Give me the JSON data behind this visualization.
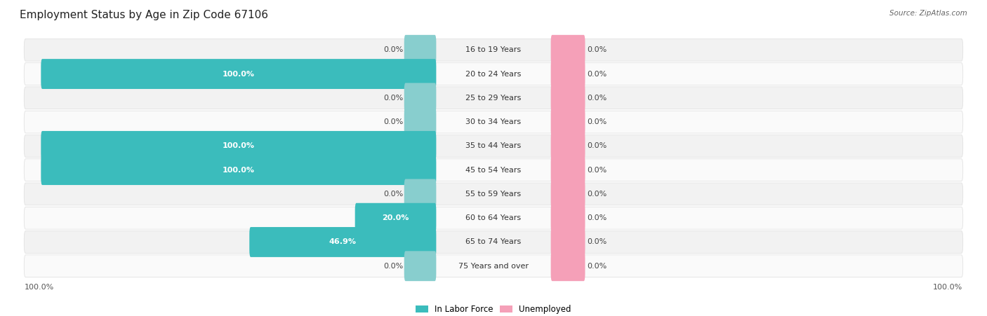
{
  "title": "Employment Status by Age in Zip Code 67106",
  "source": "Source: ZipAtlas.com",
  "categories": [
    "16 to 19 Years",
    "20 to 24 Years",
    "25 to 29 Years",
    "30 to 34 Years",
    "35 to 44 Years",
    "45 to 54 Years",
    "55 to 59 Years",
    "60 to 64 Years",
    "65 to 74 Years",
    "75 Years and over"
  ],
  "in_labor_force": [
    0.0,
    100.0,
    0.0,
    0.0,
    100.0,
    100.0,
    0.0,
    20.0,
    46.9,
    0.0
  ],
  "unemployed": [
    0.0,
    0.0,
    0.0,
    0.0,
    0.0,
    0.0,
    0.0,
    0.0,
    0.0,
    0.0
  ],
  "labor_color_full": "#3BBCBC",
  "labor_color_light": "#88CECE",
  "unemployed_color": "#F5A0B8",
  "row_bg_odd": "#F2F2F2",
  "row_bg_even": "#FAFAFA",
  "title_fontsize": 11,
  "label_fontsize": 8,
  "source_fontsize": 7.5,
  "legend_fontsize": 8.5
}
